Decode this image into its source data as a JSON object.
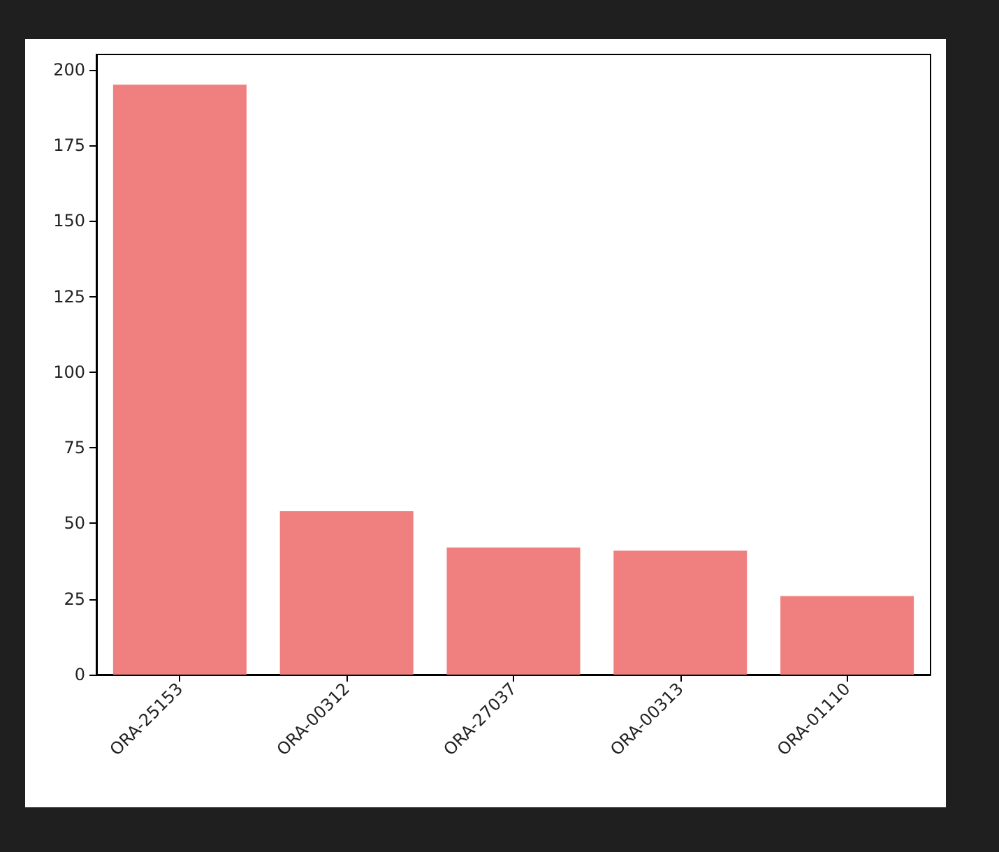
{
  "chart_data": {
    "type": "bar",
    "categories": [
      "ORA-25153",
      "ORA-00312",
      "ORA-27037",
      "ORA-00313",
      "ORA-01110"
    ],
    "values": [
      195,
      54,
      42,
      41,
      26
    ],
    "color": "#f08080",
    "ylim": [
      0,
      205
    ],
    "yticks": [
      0,
      25,
      50,
      75,
      100,
      125,
      150,
      175,
      200
    ],
    "grid": false
  }
}
